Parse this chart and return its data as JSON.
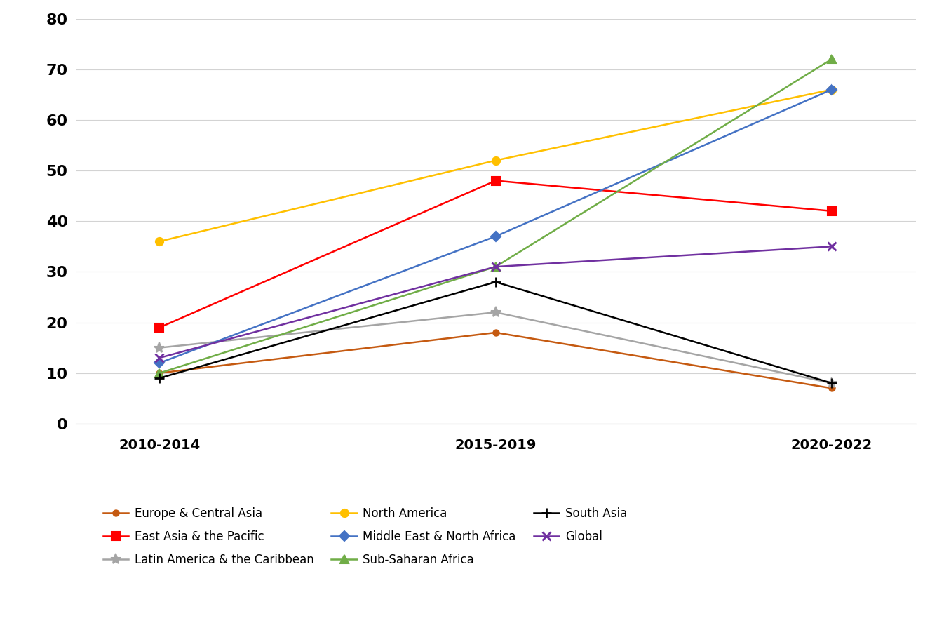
{
  "periods": [
    "2010-2014",
    "2015-2019",
    "2020-2022"
  ],
  "series": [
    {
      "label": "Europe & Central Asia",
      "color": "#C55A11",
      "marker": "o",
      "markersize": 6,
      "values": [
        10,
        18,
        7
      ]
    },
    {
      "label": "East Asia & the Pacific",
      "color": "#FF0000",
      "marker": "s",
      "markersize": 8,
      "values": [
        19,
        48,
        42
      ]
    },
    {
      "label": "Latin America & the Caribbean",
      "color": "#A5A5A5",
      "marker": "*",
      "markersize": 11,
      "values": [
        15,
        22,
        8
      ]
    },
    {
      "label": "North America",
      "color": "#FFC000",
      "marker": "o",
      "markersize": 8,
      "values": [
        36,
        52,
        66
      ]
    },
    {
      "label": "Middle East & North Africa",
      "color": "#4472C4",
      "marker": "D",
      "markersize": 7,
      "values": [
        12,
        37,
        66
      ]
    },
    {
      "label": "Sub-Saharan Africa",
      "color": "#70AD47",
      "marker": "^",
      "markersize": 9,
      "values": [
        10,
        31,
        72
      ]
    },
    {
      "label": "South Asia",
      "color": "#000000",
      "marker": "+",
      "markersize": 10,
      "markeredgewidth": 2,
      "values": [
        9,
        28,
        8
      ]
    },
    {
      "label": "Global",
      "color": "#7030A0",
      "marker": "x",
      "markersize": 9,
      "markeredgewidth": 2,
      "values": [
        13,
        31,
        35
      ]
    }
  ],
  "legend_order": [
    "Europe & Central Asia",
    "East Asia & the Pacific",
    "Latin America & the Caribbean",
    "North America",
    "Middle East & North Africa",
    "Sub-Saharan Africa",
    "South Asia",
    "Global"
  ],
  "ylim": [
    0,
    80
  ],
  "yticks": [
    0,
    10,
    20,
    30,
    40,
    50,
    60,
    70,
    80
  ],
  "background_color": "#FFFFFF",
  "grid_color": "#D3D3D3",
  "tick_fontsize": 16,
  "tick_fontweight": "bold",
  "xtick_fontsize": 14,
  "xtick_fontweight": "bold",
  "legend_fontsize": 12
}
